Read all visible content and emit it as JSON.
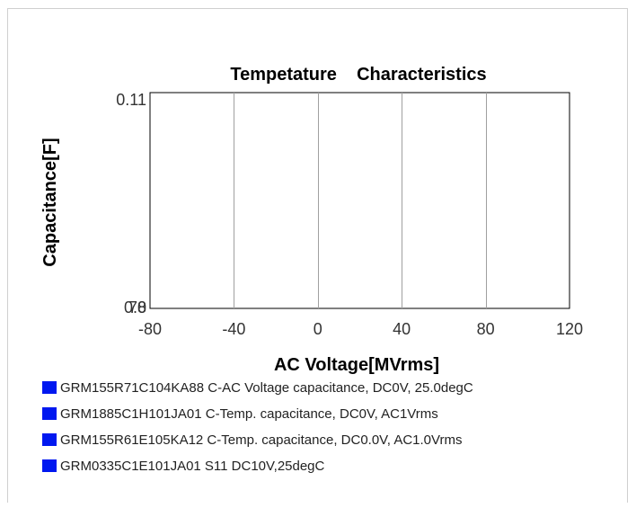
{
  "chart_data": {
    "type": "line",
    "title": "Tempetature    Characteristics",
    "xlabel": "AC Voltage[MVrms]",
    "ylabel": "Capacitance[F]",
    "xlim": [
      -80,
      120
    ],
    "x_ticks": [
      "-80",
      "-40",
      "0",
      "40",
      "80",
      "120"
    ],
    "x_tick_values": [
      -80,
      -40,
      0,
      40,
      80,
      120
    ],
    "ylim": [
      0,
      0.11
    ],
    "y_tick_labels": {
      "top": "0.11",
      "bottom_a": "0.0",
      "bottom_b": "78"
    },
    "grid": true,
    "legend_position": "bottom",
    "series": [
      {
        "name": "GRM155R71C104KA88 C-AC Voltage capacitance, DC0V, 25.0degC",
        "color": "#0018f0",
        "x": [],
        "y": []
      },
      {
        "name": "GRM1885C1H101JA01 C-Temp. capacitance, DC0V, AC1Vrms",
        "color": "#0018f0",
        "x": [],
        "y": []
      },
      {
        "name": "GRM155R61E105KA12 C-Temp. capacitance, DC0.0V, AC1.0Vrms",
        "color": "#0018f0",
        "x": [],
        "y": []
      },
      {
        "name": "GRM0335C1E101JA01 S11 DC10V,25degC",
        "color": "#0018f0",
        "x": [],
        "y": []
      }
    ]
  }
}
